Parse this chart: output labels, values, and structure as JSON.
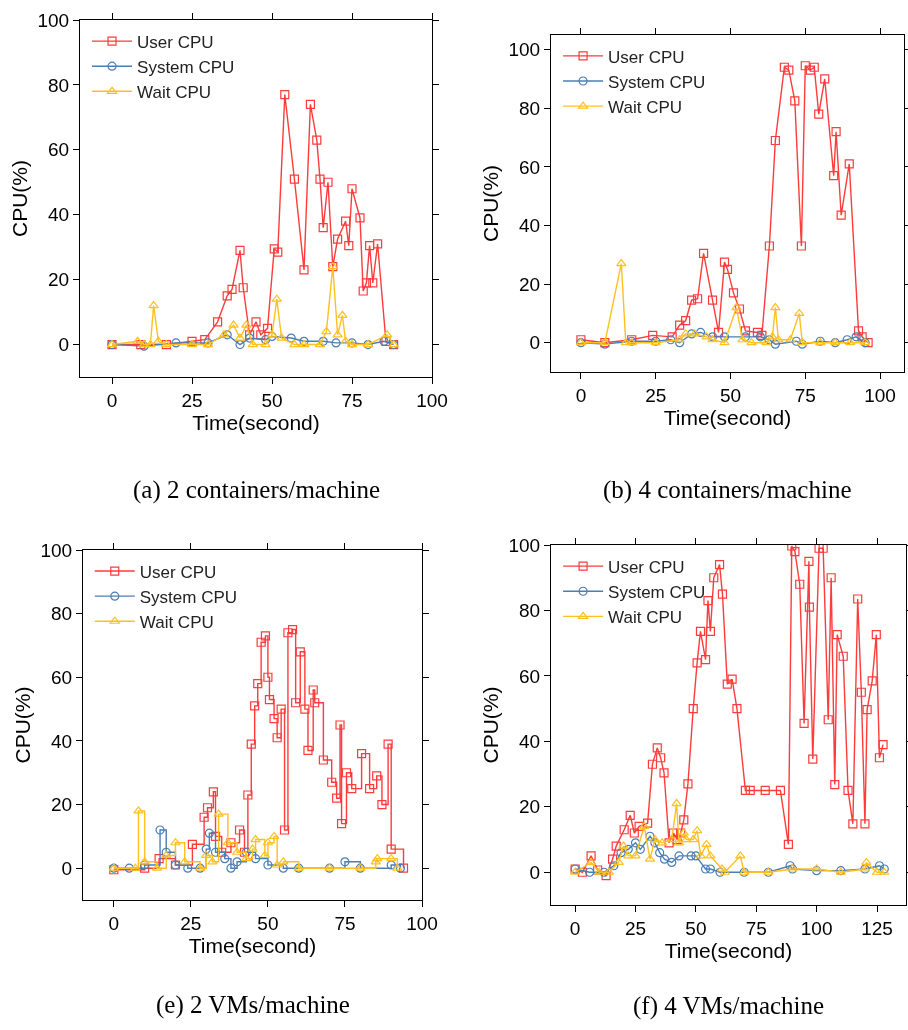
{
  "chart_data": [
    {
      "type": "line",
      "xlabel": "Time(second)",
      "ylabel": "CPU(%)",
      "annotations": [
        "(a) 2 containers/machine"
      ],
      "xlim": [
        -10,
        100
      ],
      "ylim": [
        -10,
        100
      ],
      "xticks": [
        0,
        25,
        50,
        75,
        100
      ],
      "yticks": [
        0,
        20,
        40,
        60,
        80,
        100
      ],
      "grid": false,
      "legend": "top left",
      "series": [
        {
          "name": "User CPU",
          "color": "#ff3b3b",
          "marker": "square",
          "x": [
            0,
            9,
            17,
            25,
            29,
            33,
            36,
            37.5,
            40,
            41,
            43,
            45,
            46.5,
            48.6,
            50.7,
            51.8,
            54,
            57,
            60,
            62,
            64,
            65,
            66,
            67.5,
            69,
            70.5,
            73,
            74,
            75,
            77.5,
            78.5,
            79.5,
            80.5,
            81.5,
            83,
            85.6,
            88
          ],
          "values": [
            0,
            0,
            0,
            1,
            1.5,
            7,
            15,
            17,
            29,
            17.5,
            3,
            7,
            3,
            5,
            29.5,
            28.5,
            77,
            51,
            23,
            74,
            63,
            51,
            36,
            50,
            24,
            32.5,
            38,
            30.5,
            48,
            39,
            16.5,
            19,
            30.5,
            19,
            31,
            1,
            0
          ]
        },
        {
          "name": "System CPU",
          "color": "#4a7fb5",
          "marker": "circle",
          "x": [
            0,
            10,
            20,
            30,
            36,
            40,
            43,
            48,
            50,
            56,
            60,
            66,
            70,
            75,
            80,
            85,
            88
          ],
          "values": [
            0,
            -0.5,
            0.5,
            0.5,
            3,
            0,
            2,
            1.5,
            2.5,
            2,
            1,
            1,
            0.5,
            0.5,
            0,
            1,
            0
          ]
        },
        {
          "name": "Wait CPU",
          "color": "#ffc020",
          "marker": "triangle",
          "x": [
            0,
            8,
            10,
            12,
            13,
            14.5,
            17,
            25,
            30,
            35,
            38,
            40,
            42,
            44,
            48,
            50,
            51.5,
            53,
            57,
            60,
            65,
            67,
            69,
            70.5,
            72,
            73,
            75,
            80,
            86,
            88
          ],
          "values": [
            0,
            1,
            0,
            0,
            12,
            1,
            0,
            0,
            0,
            3,
            6,
            2,
            6,
            0,
            0,
            3,
            14,
            2,
            0,
            0,
            0,
            4,
            24,
            3,
            9,
            1,
            0,
            0,
            3,
            0
          ]
        }
      ]
    },
    {
      "type": "line",
      "xlabel": "Time(second)",
      "ylabel": "CPU(%)",
      "annotations": [
        "(b) 4 containers/machine"
      ],
      "xlim": [
        -10,
        108
      ],
      "ylim": [
        -10,
        105
      ],
      "xticks": [
        0,
        25,
        50,
        75,
        100
      ],
      "yticks": [
        0,
        20,
        40,
        60,
        80,
        100
      ],
      "grid": false,
      "legend": "top left",
      "series": [
        {
          "name": "User CPU",
          "color": "#ff3b3b",
          "marker": "square",
          "x": [
            0,
            8,
            17,
            24,
            30.5,
            33,
            35,
            37,
            39,
            41,
            44,
            46,
            48,
            49,
            51,
            53,
            55,
            59,
            60.5,
            63,
            65,
            68,
            69.5,
            71.5,
            73.7,
            75,
            76.7,
            78,
            79.5,
            81.5,
            84.5,
            85.3,
            87,
            89.7,
            92.8,
            94,
            96
          ],
          "values": [
            1,
            0,
            1,
            2.5,
            2,
            6,
            7.5,
            14.5,
            15,
            30.5,
            14.5,
            3.5,
            27.5,
            25,
            17,
            11.5,
            4,
            3.5,
            2.5,
            33,
            69,
            94,
            93,
            82.5,
            33,
            94.5,
            93,
            94,
            78,
            90,
            57,
            72,
            43.5,
            61,
            4,
            2,
            0
          ]
        },
        {
          "name": "System CPU",
          "color": "#4a7fb5",
          "marker": "circle",
          "x": [
            0,
            8,
            17,
            25,
            30,
            33,
            37,
            40,
            44,
            48,
            55,
            60,
            63,
            65,
            72,
            74,
            80,
            85,
            89,
            92,
            95
          ],
          "values": [
            0,
            -0.5,
            0.5,
            0.5,
            1,
            0,
            3,
            3.5,
            2,
            2,
            2,
            2,
            1,
            -0.5,
            0.5,
            -0.5,
            0.5,
            0,
            1,
            2,
            0
          ]
        },
        {
          "name": "Wait CPU",
          "color": "#ffc020",
          "marker": "triangle",
          "x": [
            0,
            8,
            13.5,
            15,
            17,
            25,
            33,
            35,
            38,
            42,
            44,
            48,
            52,
            54,
            57,
            62,
            64,
            65,
            66,
            70,
            73,
            74,
            80,
            85,
            90,
            95
          ],
          "values": [
            0,
            0,
            27,
            0,
            0,
            0,
            1,
            3,
            3,
            2,
            1,
            0,
            12,
            1,
            0,
            0,
            2,
            12,
            1,
            1,
            10,
            0,
            0,
            0,
            0,
            0
          ]
        }
      ]
    },
    {
      "type": "step",
      "xlabel": "Time(second)",
      "ylabel": "CPU(%)",
      "annotations": [
        "(e) 2 VMs/machine"
      ],
      "xlim": [
        -10,
        100
      ],
      "ylim": [
        -10,
        100
      ],
      "xticks": [
        0,
        25,
        50,
        75,
        100
      ],
      "yticks": [
        0,
        20,
        40,
        60,
        80,
        100
      ],
      "grid": false,
      "legend": "top left",
      "series": [
        {
          "name": "User CPU",
          "color": "#ff3b3b",
          "marker": "square",
          "x": [
            0,
            10,
            14.7,
            20,
            25.5,
            29.3,
            30.4,
            32.3,
            33,
            35,
            38,
            40.8,
            42.4,
            43.5,
            44.6,
            45.7,
            46.7,
            47.8,
            49.2,
            50,
            50.5,
            52,
            53,
            54.3,
            55.4,
            56.5,
            58,
            59,
            60.5,
            62,
            63,
            64.7,
            65.2,
            68,
            70.7,
            72.3,
            73.4,
            73.9,
            75.5,
            77.2,
            80.4,
            83,
            85.3,
            87,
            89,
            90,
            94
          ],
          "values": [
            -0.5,
            0,
            3,
            1,
            7.5,
            16,
            19,
            24,
            10,
            5,
            8,
            12,
            5,
            23,
            39,
            51,
            58,
            71,
            73,
            60,
            53,
            47,
            41,
            50,
            12,
            74,
            75,
            52,
            68,
            50,
            37,
            56,
            52,
            34,
            27,
            22,
            45,
            14,
            30,
            25,
            36,
            25,
            29,
            20,
            39,
            6,
            0
          ]
        },
        {
          "name": "System CPU",
          "color": "#4a7fb5",
          "marker": "circle",
          "x": [
            0,
            5,
            10,
            15,
            17,
            20,
            24,
            28,
            30,
            31,
            33,
            36,
            38,
            40,
            43,
            46,
            50,
            55,
            60,
            70,
            75,
            80,
            90,
            93
          ],
          "values": [
            0,
            0,
            1,
            12,
            5,
            1,
            0,
            0,
            6,
            11,
            5,
            3,
            0,
            2,
            5,
            3,
            1,
            0,
            0,
            0,
            2,
            0,
            1,
            0
          ]
        },
        {
          "name": "Wait CPU",
          "color": "#ffc020",
          "marker": "triangle",
          "x": [
            0,
            7,
            8,
            10,
            14,
            17,
            20,
            23,
            28,
            30,
            32,
            34,
            37,
            40,
            43,
            45,
            46,
            49,
            50,
            52,
            53,
            55,
            60,
            70,
            80,
            85,
            85.5,
            90,
            92
          ],
          "values": [
            0,
            0,
            18,
            2,
            0,
            4,
            8,
            2,
            0,
            4,
            2,
            17,
            8,
            5,
            3,
            6,
            9,
            4,
            8,
            10,
            1,
            2,
            0,
            0,
            0,
            2,
            3,
            3,
            0
          ]
        }
      ]
    },
    {
      "type": "line",
      "xlabel": "Time(second)",
      "ylabel": "CPU(%)",
      "annotations": [
        "(f) 4 VMs/machine"
      ],
      "xlim": [
        -10,
        137
      ],
      "ylim": [
        -10,
        100
      ],
      "xticks": [
        0,
        25,
        50,
        75,
        100,
        125
      ],
      "yticks": [
        0,
        20,
        40,
        60,
        80,
        100
      ],
      "grid": false,
      "legend": "top left",
      "series": [
        {
          "name": "User CPU",
          "color": "#ff3b3b",
          "marker": "square",
          "x": [
            0,
            3,
            6.6,
            9.3,
            12.8,
            15.5,
            17,
            20.3,
            22.8,
            24.5,
            26.5,
            30,
            32,
            34,
            35.4,
            36.8,
            38.9,
            40.7,
            42.3,
            43.7,
            45,
            46.7,
            48.9,
            50.5,
            51.9,
            54,
            55,
            56,
            57.4,
            59.8,
            61,
            63,
            65,
            67,
            70.5,
            72.5,
            78.7,
            85,
            88.3,
            89.7,
            91,
            93,
            94.8,
            96.8,
            97,
            98.4,
            101,
            102.7,
            104.8,
            106,
            107.5,
            108.5,
            111,
            113,
            115,
            117,
            118.5,
            120,
            120.9,
            123,
            124.7,
            126,
            127.5
          ],
          "values": [
            1,
            0,
            5,
            0.7,
            -1,
            4,
            8,
            13,
            17.4,
            12,
            14,
            15,
            33,
            38,
            35,
            30.4,
            9,
            12,
            10,
            12,
            16,
            27,
            50,
            64,
            73.6,
            65,
            83,
            73.6,
            90,
            94,
            85,
            57.5,
            59,
            50,
            25,
            25,
            25,
            25,
            8.5,
            99.7,
            98,
            88,
            45.5,
            95,
            81,
            34.6,
            99,
            99,
            46.6,
            90,
            26.8,
            72.6,
            66,
            25,
            14.8,
            83.5,
            55,
            14.8,
            49.7,
            58.5,
            72.6,
            35,
            39
          ]
        },
        {
          "name": "System CPU",
          "color": "#4a7fb5",
          "marker": "circle",
          "x": [
            0,
            6,
            12,
            16,
            19,
            22,
            25,
            27,
            31,
            33,
            35,
            37,
            40,
            43,
            48,
            50,
            54,
            56,
            60,
            70,
            80,
            89,
            90,
            100,
            110,
            120,
            126,
            128
          ],
          "values": [
            1,
            0,
            0,
            2,
            6,
            7,
            9,
            7,
            11,
            9,
            6,
            4,
            3,
            5,
            5,
            5,
            1,
            1,
            0,
            0,
            0,
            2,
            1,
            0.5,
            0.5,
            1,
            2,
            1
          ]
        },
        {
          "name": "Wait CPU",
          "color": "#ffc020",
          "marker": "triangle",
          "x": [
            0,
            6.6,
            10,
            14,
            18,
            20,
            22,
            25,
            28.6,
            31,
            33,
            36,
            40,
            42,
            43,
            45,
            46,
            48.9,
            50.5,
            52,
            54.4,
            56,
            60.8,
            62,
            68.4,
            70,
            80,
            90,
            100,
            110,
            120,
            120.6,
            125,
            128
          ],
          "values": [
            0,
            3,
            0,
            0,
            3,
            8,
            5,
            5,
            14,
            4,
            10,
            9,
            10,
            21,
            9,
            12,
            10,
            10,
            12.7,
            5,
            8.5,
            5,
            1,
            0,
            5,
            0,
            0,
            1,
            1,
            0,
            1,
            3,
            0,
            0
          ]
        }
      ]
    }
  ]
}
